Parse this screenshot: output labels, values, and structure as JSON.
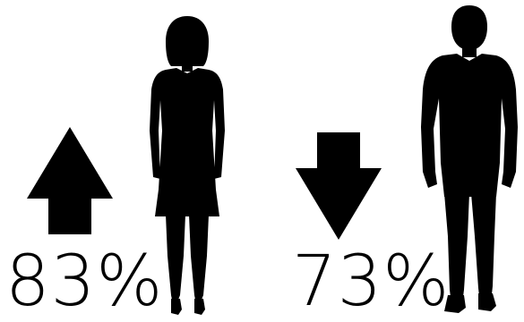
{
  "colors": {
    "ink": "#000000",
    "background": "#ffffff"
  },
  "stats": [
    {
      "id": "women",
      "value": 0.83,
      "label": "83%",
      "direction": "up",
      "icon": "woman-silhouette-icon",
      "arrow_icon": "arrow-up-icon"
    },
    {
      "id": "men",
      "value": 0.73,
      "label": "73%",
      "direction": "down",
      "icon": "man-silhouette-icon",
      "arrow_icon": "arrow-down-icon"
    }
  ]
}
